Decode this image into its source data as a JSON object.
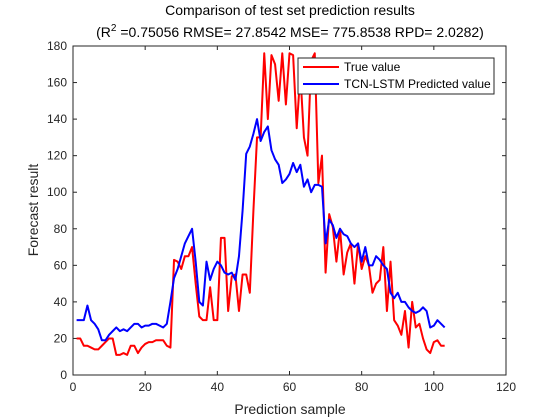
{
  "chart_data": {
    "type": "line",
    "title": "Comparison of test set prediction results",
    "subtitle": {
      "prefix": "(R",
      "sup": "2",
      "rest": " =0.75056 RMSE= 27.8542 MSE= 775.8538 RPD= 2.0282)"
    },
    "xlabel": "Prediction sample",
    "ylabel": "Forecast result",
    "xlim": [
      0,
      120
    ],
    "ylim": [
      0,
      180
    ],
    "xticks": [
      0,
      20,
      40,
      60,
      80,
      100,
      120
    ],
    "yticks": [
      0,
      20,
      40,
      60,
      80,
      100,
      120,
      140,
      160,
      180
    ],
    "grid": false,
    "legend_position": "top-right",
    "x": [
      1,
      2,
      3,
      4,
      5,
      6,
      7,
      8,
      9,
      10,
      11,
      12,
      13,
      14,
      15,
      16,
      17,
      18,
      19,
      20,
      21,
      22,
      23,
      24,
      25,
      26,
      27,
      28,
      29,
      30,
      31,
      32,
      33,
      34,
      35,
      36,
      37,
      38,
      39,
      40,
      41,
      42,
      43,
      44,
      45,
      46,
      47,
      48,
      49,
      50,
      51,
      52,
      53,
      54,
      55,
      56,
      57,
      58,
      59,
      60,
      61,
      62,
      63,
      64,
      65,
      66,
      67,
      68,
      69,
      70,
      71,
      72,
      73,
      74,
      75,
      76,
      77,
      78,
      79,
      80,
      81,
      82,
      83,
      84,
      85,
      86,
      87,
      88,
      89,
      90,
      91,
      92,
      93,
      94,
      95,
      96,
      97,
      98,
      99,
      100,
      101,
      102,
      103
    ],
    "series": [
      {
        "name": "True value",
        "color": "#ff0000",
        "values": [
          20,
          20,
          16,
          16,
          15,
          14,
          14,
          16,
          18,
          20,
          20,
          11,
          11,
          12,
          11,
          16,
          16,
          12,
          15,
          17,
          18,
          18,
          19,
          19,
          19,
          16,
          15,
          63,
          62,
          58,
          65,
          65,
          70,
          50,
          32,
          30,
          30,
          48,
          30,
          30,
          75,
          75,
          35,
          54,
          55,
          35,
          55,
          55,
          45,
          90,
          130,
          130,
          176,
          140,
          175,
          170,
          150,
          176,
          148,
          176,
          175,
          135,
          165,
          130,
          120,
          172,
          176,
          105,
          120,
          56,
          88,
          81,
          62,
          80,
          55,
          67,
          72,
          50,
          72,
          58,
          65,
          60,
          45,
          50,
          52,
          70,
          35,
          62,
          30,
          27,
          22,
          35,
          15,
          40,
          26,
          28,
          20,
          14,
          12,
          18,
          19,
          16,
          16
        ],
        "line_width": 2
      },
      {
        "name": "TCN-LSTM Predicted value",
        "color": "#0000ff",
        "values": [
          30,
          30,
          30,
          38,
          30,
          28,
          25,
          19,
          19,
          22,
          24,
          26,
          24,
          25,
          24,
          26,
          28,
          28,
          26,
          27,
          27,
          28,
          28,
          27,
          26,
          28,
          40,
          53,
          58,
          65,
          72,
          76,
          80,
          62,
          40,
          38,
          62,
          52,
          58,
          62,
          60,
          56,
          55,
          56,
          52,
          65,
          90,
          121,
          125,
          132,
          140,
          128,
          133,
          136,
          123,
          118,
          115,
          105,
          107,
          110,
          116,
          111,
          115,
          103,
          107,
          100,
          104,
          104,
          103,
          72,
          85,
          82,
          75,
          80,
          77,
          76,
          72,
          70,
          72,
          62,
          70,
          60,
          60,
          65,
          63,
          60,
          58,
          45,
          42,
          45,
          40,
          40,
          37,
          35,
          34,
          35,
          37,
          35,
          26,
          27,
          30,
          28,
          26
        ],
        "line_width": 2
      }
    ]
  }
}
